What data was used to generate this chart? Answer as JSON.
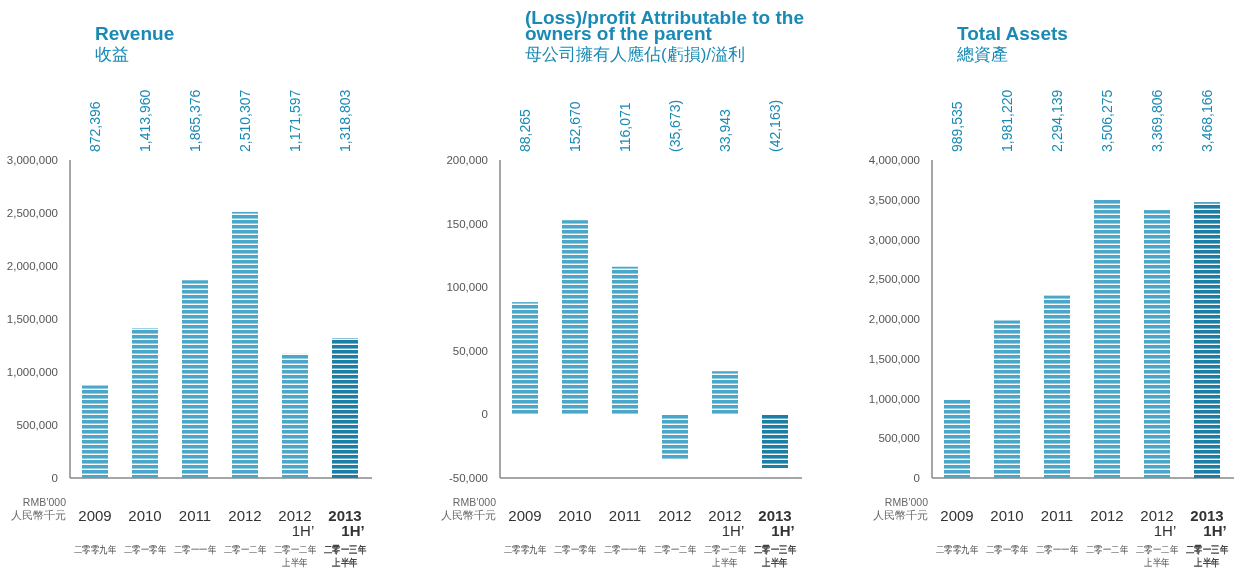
{
  "chart_data": [
    {
      "type": "bar",
      "title": "Revenue",
      "subtitle": "收益",
      "categories": [
        "2009\n二零零九年",
        "2010\n二零一零年",
        "2011\n二零一一年",
        "2012\n二零一二年",
        "2012\n1H’\n二零一二年上半年",
        "2013\n1H’\n二零一三年上半年"
      ],
      "values": [
        872396,
        1413960,
        1865376,
        2510307,
        1171597,
        1318803
      ],
      "colors": [
        "#4aa7c9",
        "#4aa7c9",
        "#4aa7c9",
        "#4aa7c9",
        "#4aa7c9",
        "#1a7ea6"
      ],
      "value_labels": [
        "872,396",
        "1,413,960",
        "1,865,376",
        "2,510,307",
        "1,171,597",
        "1,318,803"
      ],
      "ylim": [
        0,
        3000000
      ],
      "yticks": [
        {
          "value": 0,
          "label": "0"
        },
        {
          "value": 500000,
          "label": "500,000"
        },
        {
          "value": 1000000,
          "label": "1,000,000"
        },
        {
          "value": 1500000,
          "label": "1,500,000"
        },
        {
          "value": 2000000,
          "label": "2,000,000"
        },
        {
          "value": 2500000,
          "label": "2,500,000"
        },
        {
          "value": 3000000,
          "label": "3,000,000"
        }
      ],
      "annotations": [
        "RMB’000\n人民幣千元"
      ]
    },
    {
      "type": "bar",
      "title": "(Loss)/profit Attributable to the owners of the parent",
      "subtitle": "母公司擁有人應佔(虧損)/溢利",
      "categories": [
        "2009\n二零零九年",
        "2010\n二零一零年",
        "2011\n二零一一年",
        "2012\n二零一二年",
        "2012\n1H’\n二零一二年上半年",
        "2013\n1H’\n二零一三年上半年"
      ],
      "values": [
        88265,
        152670,
        116071,
        -35673,
        33943,
        -42163
      ],
      "colors": [
        "#4aa7c9",
        "#4aa7c9",
        "#4aa7c9",
        "#4aa7c9",
        "#4aa7c9",
        "#1a7ea6"
      ],
      "value_labels": [
        "88,265",
        "152,670",
        "116,071",
        "(35,673)",
        "33,943",
        "(42,163)"
      ],
      "ylim": [
        -50000,
        200000
      ],
      "yticks": [
        {
          "value": -50000,
          "label": "-50,000"
        },
        {
          "value": 0,
          "label": "0"
        },
        {
          "value": 50000,
          "label": "50,000"
        },
        {
          "value": 100000,
          "label": "100,000"
        },
        {
          "value": 150000,
          "label": "150,000"
        },
        {
          "value": 200000,
          "label": "200,000"
        }
      ],
      "annotations": [
        "RMB’000\n人民幣千元"
      ]
    },
    {
      "type": "bar",
      "title": "Total Assets",
      "subtitle": "總資產",
      "categories": [
        "2009\n二零零九年",
        "2010\n二零一零年",
        "2011\n二零一一年",
        "2012\n二零一二年",
        "2012\n1H’\n二零一二年上半年",
        "2013\n1H’\n二零一三年上半年"
      ],
      "values": [
        989535,
        1981220,
        2294139,
        3506275,
        3369806,
        3468166
      ],
      "colors": [
        "#4aa7c9",
        "#4aa7c9",
        "#4aa7c9",
        "#4aa7c9",
        "#4aa7c9",
        "#1a7ea6"
      ],
      "value_labels": [
        "989,535",
        "1,981,220",
        "2,294,139",
        "3,506,275",
        "3,369,806",
        "3,468,166"
      ],
      "ylim": [
        0,
        4000000
      ],
      "yticks": [
        {
          "value": 0,
          "label": "0"
        },
        {
          "value": 500000,
          "label": "500,000"
        },
        {
          "value": 1000000,
          "label": "1,000,000"
        },
        {
          "value": 1500000,
          "label": "1,500,000"
        },
        {
          "value": 2000000,
          "label": "2,000,000"
        },
        {
          "value": 2500000,
          "label": "2,500,000"
        },
        {
          "value": 3000000,
          "label": "3,000,000"
        },
        {
          "value": 3500000,
          "label": "3,500,000"
        },
        {
          "value": 4000000,
          "label": "4,000,000"
        }
      ],
      "annotations": [
        "RMB’000\n人民幣千元"
      ]
    }
  ]
}
